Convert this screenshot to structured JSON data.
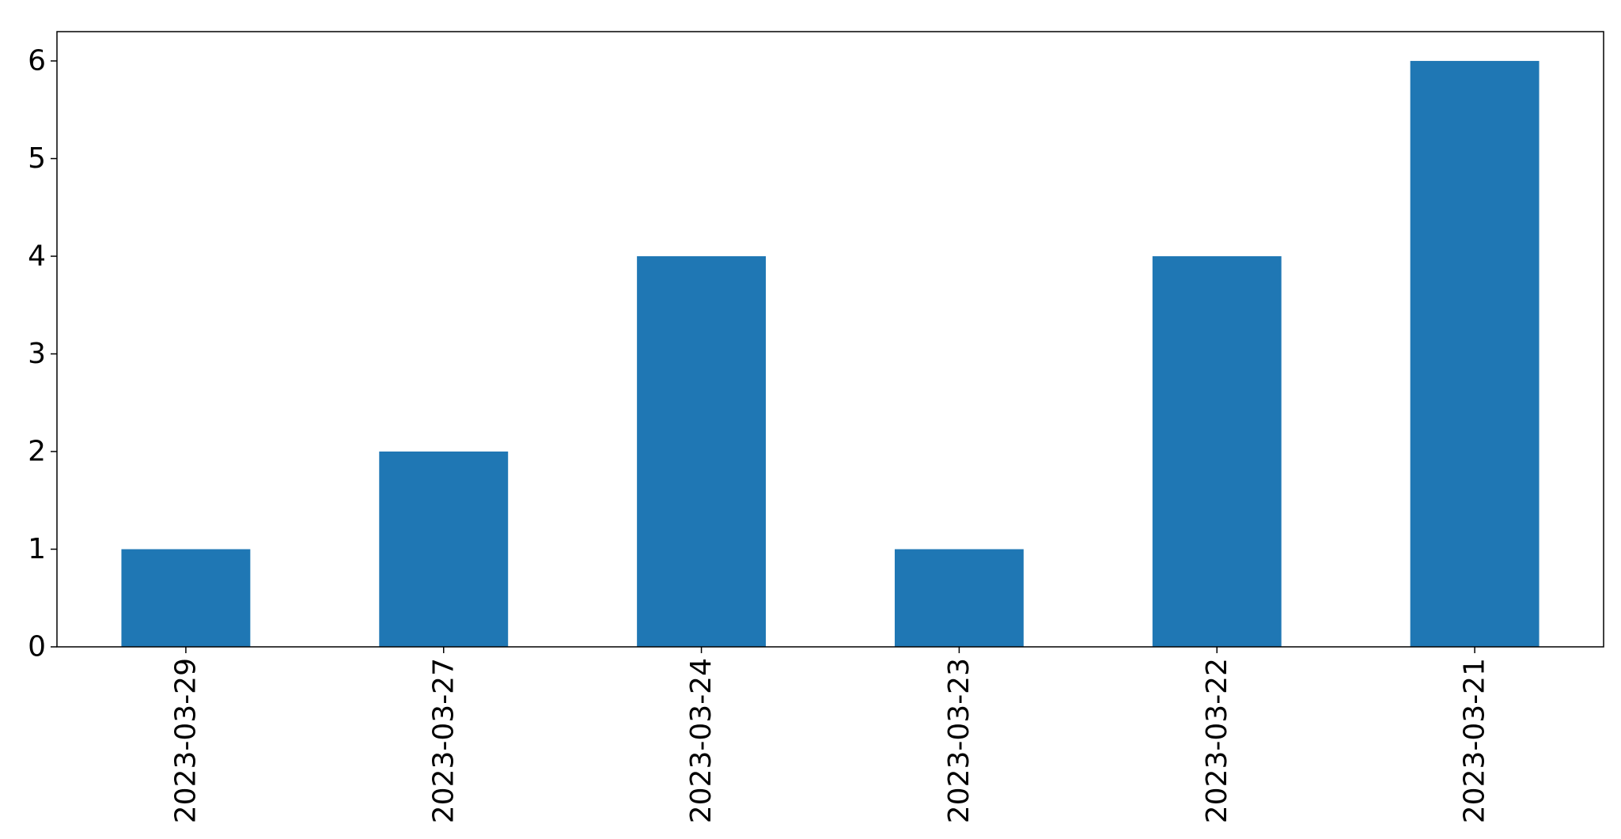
{
  "chart_data": {
    "type": "bar",
    "categories": [
      "2023-03-29",
      "2023-03-27",
      "2023-03-24",
      "2023-03-23",
      "2023-03-22",
      "2023-03-21"
    ],
    "values": [
      1,
      2,
      4,
      1,
      4,
      6
    ],
    "title": "",
    "xlabel": "",
    "ylabel": "",
    "ylim": [
      0,
      6.3
    ],
    "yticks": [
      0,
      1,
      2,
      3,
      4,
      5,
      6
    ],
    "grid": false,
    "legend": "none",
    "bar_color": "#1f77b4"
  }
}
